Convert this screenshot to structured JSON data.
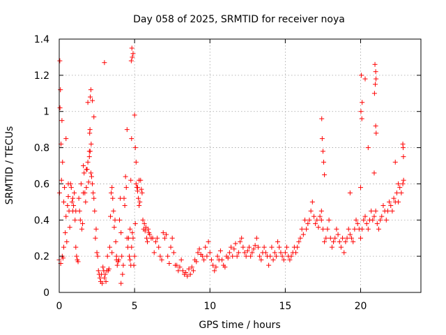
{
  "chart_data": {
    "type": "scatter",
    "title": "Day 058 of 2025, SRMTID for receiver noya",
    "xlabel": "GPS time / hours",
    "ylabel": "SRMTID / TECUs",
    "xlim": [
      0,
      24
    ],
    "ylim": [
      0,
      1.4
    ],
    "xticks": [
      0,
      5,
      10,
      15,
      20
    ],
    "xtick_labels": [
      "0",
      "5",
      "10",
      "15",
      "20"
    ],
    "yticks": [
      0,
      0.2,
      0.4,
      0.6,
      0.8,
      1.0,
      1.2,
      1.4
    ],
    "ytick_labels": [
      "0",
      "0.2",
      "0.4",
      "0.6",
      "0.8",
      "1",
      "1.2",
      "1.4"
    ],
    "grid": true,
    "marker": "+",
    "color": "#ff0000",
    "series": [
      {
        "name": "SRMTID",
        "x": [
          0.0,
          0.05,
          0.1,
          0.15,
          0.2,
          0.25,
          0.3,
          0.35,
          0.4,
          0.45,
          0.5,
          0.55,
          0.6,
          0.65,
          0.7,
          0.75,
          0.8,
          0.85,
          0.9,
          0.95,
          1.0,
          1.05,
          1.1,
          1.15,
          1.2,
          1.25,
          1.3,
          1.35,
          1.4,
          1.45,
          1.5,
          1.55,
          1.6,
          1.65,
          1.7,
          1.75,
          1.8,
          1.85,
          1.9,
          1.95,
          2.0,
          2.05,
          2.1,
          2.15,
          2.2,
          2.25,
          2.3,
          2.35,
          2.4,
          2.45,
          2.5,
          2.55,
          2.6,
          2.65,
          2.7,
          2.75,
          2.8,
          2.85,
          2.9,
          2.95,
          3.0,
          3.05,
          3.1,
          3.15,
          3.2,
          3.25,
          3.3,
          3.35,
          3.4,
          3.45,
          3.5,
          3.55,
          3.6,
          3.65,
          3.7,
          3.75,
          3.8,
          3.85,
          3.9,
          3.95,
          4.0,
          4.05,
          4.1,
          4.15,
          4.2,
          4.25,
          4.3,
          4.35,
          4.4,
          4.45,
          4.5,
          4.55,
          4.6,
          4.65,
          4.7,
          4.75,
          4.8,
          4.85,
          4.9,
          4.95,
          5.0,
          5.05,
          5.1,
          5.15,
          5.2,
          5.25,
          5.3,
          5.35,
          5.4,
          5.45,
          5.5,
          5.55,
          5.6,
          5.65,
          5.7,
          5.75,
          5.8,
          5.85,
          5.9,
          5.95,
          6.0,
          6.1,
          6.2,
          6.3,
          6.4,
          6.5,
          6.6,
          6.7,
          6.8,
          6.9,
          7.0,
          7.1,
          7.2,
          7.3,
          7.4,
          7.5,
          7.6,
          7.7,
          7.8,
          7.9,
          8.0,
          8.1,
          8.2,
          8.3,
          8.4,
          8.5,
          8.6,
          8.7,
          8.8,
          8.9,
          9.0,
          9.1,
          9.2,
          9.3,
          9.4,
          9.5,
          9.6,
          9.7,
          9.8,
          9.9,
          10.0,
          10.1,
          10.2,
          10.3,
          10.4,
          10.5,
          10.6,
          10.7,
          10.8,
          10.9,
          11.0,
          11.1,
          11.2,
          11.3,
          11.4,
          11.5,
          11.6,
          11.7,
          11.8,
          11.9,
          12.0,
          12.1,
          12.2,
          12.3,
          12.4,
          12.5,
          12.6,
          12.7,
          12.8,
          12.9,
          13.0,
          13.1,
          13.2,
          13.3,
          13.4,
          13.5,
          13.6,
          13.7,
          13.8,
          13.9,
          14.0,
          14.1,
          14.2,
          14.3,
          14.4,
          14.5,
          14.6,
          14.7,
          14.8,
          14.9,
          15.0,
          15.1,
          15.2,
          15.3,
          15.4,
          15.5,
          15.6,
          15.7,
          15.8,
          15.9,
          16.0,
          16.1,
          16.2,
          16.3,
          16.4,
          16.5,
          16.6,
          16.7,
          16.8,
          16.9,
          17.0,
          17.1,
          17.2,
          17.3,
          17.4,
          17.5,
          17.6,
          17.7,
          17.8,
          17.9,
          18.0,
          18.1,
          18.2,
          18.3,
          18.4,
          18.5,
          18.6,
          18.7,
          18.8,
          18.9,
          19.0,
          19.1,
          19.2,
          19.3,
          19.4,
          19.5,
          19.6,
          19.7,
          19.8,
          19.9,
          20.0,
          20.1,
          20.2,
          20.3,
          20.4,
          20.5,
          20.6,
          20.7,
          20.8,
          20.9,
          21.0,
          21.1,
          21.2,
          21.3,
          21.4,
          21.5,
          21.6,
          21.7,
          21.8,
          21.9,
          22.0,
          22.1,
          22.2,
          22.3,
          22.4,
          22.5,
          22.6,
          22.7,
          22.8,
          22.85,
          0.02,
          0.04,
          0.08,
          0.12,
          0.18,
          0.22,
          0.3,
          0.45,
          0.6,
          0.9,
          1.1,
          1.6,
          1.8,
          1.9,
          2.0,
          2.02,
          2.04,
          2.06,
          2.1,
          2.12,
          2.2,
          2.3,
          3.0,
          3.5,
          3.8,
          4.1,
          4.5,
          4.7,
          4.75,
          4.8,
          4.85,
          4.82,
          4.78,
          4.9,
          5.0,
          5.05,
          5.1,
          5.2,
          5.3,
          17.4,
          17.42,
          17.45,
          17.5,
          17.55,
          17.6,
          19.3,
          20.0,
          20.02,
          20.05,
          20.1,
          20.08,
          20.3,
          20.5,
          20.9,
          20.92,
          20.95,
          21.0,
          21.02,
          20.97,
          21.0,
          21.03,
          22.8,
          22.82,
          22.84,
          22.5,
          22.3
        ],
        "y": [
          0.18,
          1.02,
          0.16,
          0.62,
          0.2,
          0.19,
          0.25,
          0.58,
          0.33,
          0.42,
          0.28,
          0.48,
          0.53,
          0.45,
          0.36,
          0.6,
          0.58,
          0.5,
          0.45,
          0.48,
          0.55,
          0.4,
          0.25,
          0.2,
          0.18,
          0.17,
          0.52,
          0.45,
          0.4,
          0.6,
          0.35,
          0.38,
          0.7,
          0.66,
          0.55,
          0.5,
          0.58,
          0.68,
          0.72,
          0.61,
          0.75,
          0.78,
          0.66,
          0.64,
          0.6,
          0.55,
          0.52,
          0.45,
          0.3,
          0.35,
          0.22,
          0.2,
          0.12,
          0.1,
          0.08,
          0.06,
          0.1,
          0.05,
          0.14,
          0.12,
          0.08,
          0.1,
          0.06,
          0.12,
          0.2,
          0.12,
          0.13,
          0.25,
          0.42,
          0.55,
          0.58,
          0.52,
          0.45,
          0.36,
          0.4,
          0.28,
          0.2,
          0.15,
          0.17,
          0.18,
          0.4,
          0.52,
          0.33,
          0.2,
          0.1,
          0.15,
          0.52,
          0.48,
          0.64,
          0.58,
          0.3,
          0.25,
          0.3,
          0.2,
          0.18,
          0.15,
          0.25,
          0.33,
          0.3,
          0.15,
          0.2,
          0.38,
          0.6,
          0.58,
          0.56,
          0.52,
          0.48,
          0.5,
          0.62,
          0.57,
          0.55,
          0.4,
          0.35,
          0.38,
          0.34,
          0.36,
          0.3,
          0.28,
          0.35,
          0.33,
          0.32,
          0.3,
          0.3,
          0.22,
          0.28,
          0.3,
          0.25,
          0.2,
          0.18,
          0.33,
          0.3,
          0.32,
          0.2,
          0.16,
          0.25,
          0.3,
          0.22,
          0.15,
          0.15,
          0.12,
          0.14,
          0.18,
          0.12,
          0.1,
          0.11,
          0.09,
          0.13,
          0.1,
          0.14,
          0.12,
          0.18,
          0.17,
          0.22,
          0.24,
          0.21,
          0.2,
          0.18,
          0.25,
          0.2,
          0.28,
          0.22,
          0.18,
          0.15,
          0.12,
          0.14,
          0.2,
          0.18,
          0.23,
          0.18,
          0.15,
          0.14,
          0.2,
          0.19,
          0.22,
          0.25,
          0.2,
          0.24,
          0.27,
          0.2,
          0.22,
          0.28,
          0.3,
          0.25,
          0.22,
          0.2,
          0.23,
          0.25,
          0.2,
          0.22,
          0.24,
          0.26,
          0.3,
          0.25,
          0.2,
          0.18,
          0.22,
          0.25,
          0.22,
          0.2,
          0.15,
          0.2,
          0.25,
          0.18,
          0.22,
          0.2,
          0.28,
          0.25,
          0.22,
          0.2,
          0.18,
          0.22,
          0.25,
          0.2,
          0.18,
          0.2,
          0.22,
          0.25,
          0.22,
          0.25,
          0.28,
          0.3,
          0.35,
          0.32,
          0.4,
          0.35,
          0.38,
          0.4,
          0.45,
          0.5,
          0.42,
          0.38,
          0.4,
          0.36,
          0.42,
          0.4,
          0.35,
          0.28,
          0.3,
          0.35,
          0.4,
          0.3,
          0.25,
          0.28,
          0.3,
          0.35,
          0.32,
          0.28,
          0.25,
          0.3,
          0.22,
          0.28,
          0.3,
          0.35,
          0.32,
          0.3,
          0.28,
          0.35,
          0.4,
          0.38,
          0.35,
          0.3,
          0.35,
          0.4,
          0.42,
          0.38,
          0.35,
          0.4,
          0.45,
          0.4,
          0.42,
          0.45,
          0.38,
          0.35,
          0.4,
          0.42,
          0.48,
          0.45,
          0.4,
          0.45,
          0.5,
          0.48,
          0.45,
          0.52,
          0.5,
          0.55,
          0.5,
          0.58,
          0.55,
          0.6,
          0.62,
          0.55,
          1.28,
          1.12,
          0.82,
          0.95,
          0.72,
          0.5,
          0.85,
          0.6,
          0.52,
          0.45,
          0.55,
          0.68,
          1.05,
          0.78,
          0.88,
          0.9,
          1.08,
          1.12,
          0.82,
          1.06,
          0.97,
          1.27,
          0.22,
          0.18,
          0.05,
          0.9,
          0.35,
          0.62,
          0.85,
          1.3,
          1.35,
          1.28,
          1.32,
          0.98,
          0.8,
          0.72,
          0.58,
          0.62,
          0.45,
          0.96,
          0.85,
          0.78,
          0.72,
          0.65,
          0.55,
          0.58,
          1.0,
          1.2,
          1.05,
          0.96,
          1.18,
          0.8,
          0.66,
          1.1,
          1.26,
          1.22,
          1.18,
          1.15,
          0.92,
          0.88,
          0.82,
          0.8,
          0.75,
          0.6,
          0.72
        ]
      }
    ]
  }
}
